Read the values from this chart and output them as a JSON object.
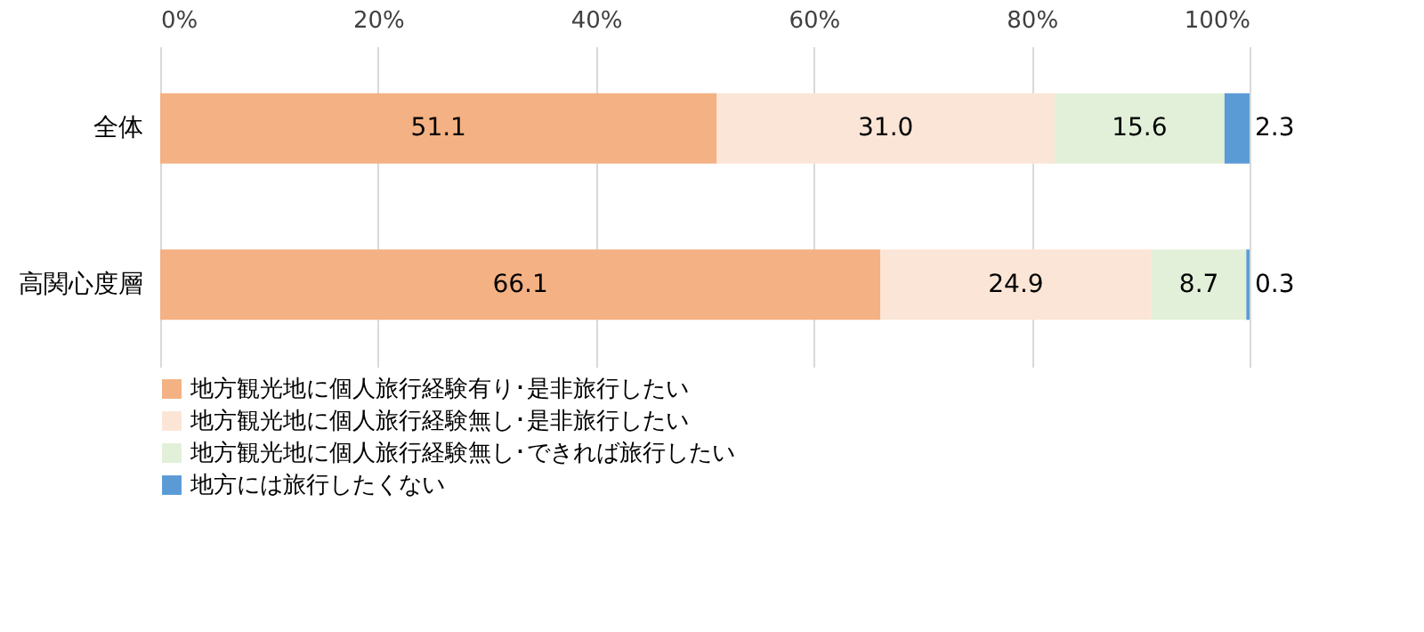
{
  "chart_data": {
    "type": "bar",
    "orientation": "horizontal",
    "stacked": true,
    "categories": [
      "全体",
      "高関心度層"
    ],
    "series": [
      {
        "name": "地方観光地に個人旅行経験有り･是非旅行したい",
        "color": "#f4b183",
        "values": [
          51.1,
          66.1
        ]
      },
      {
        "name": "地方観光地に個人旅行経験無し･是非旅行したい",
        "color": "#fbe5d6",
        "values": [
          31.0,
          24.9
        ]
      },
      {
        "name": "地方観光地に個人旅行経験無し･できれば旅行したい",
        "color": "#e2f0d9",
        "values": [
          15.6,
          8.7
        ]
      },
      {
        "name": "地方には旅行したくない",
        "color": "#5b9bd5",
        "values": [
          2.3,
          0.3
        ]
      }
    ],
    "value_labels": [
      [
        "51.1",
        "66.1"
      ],
      [
        "31.0",
        "24.9"
      ],
      [
        "15.6",
        "8.7"
      ],
      [
        "2.3",
        "0.3"
      ]
    ],
    "xlim": [
      0,
      100
    ],
    "xticks": [
      {
        "value": 0,
        "label": "0%"
      },
      {
        "value": 20,
        "label": "20%"
      },
      {
        "value": 40,
        "label": "40%"
      },
      {
        "value": 60,
        "label": "60%"
      },
      {
        "value": 80,
        "label": "80%"
      },
      {
        "value": 100,
        "label": "100%"
      }
    ],
    "grid": "x",
    "legend": "bottom"
  }
}
